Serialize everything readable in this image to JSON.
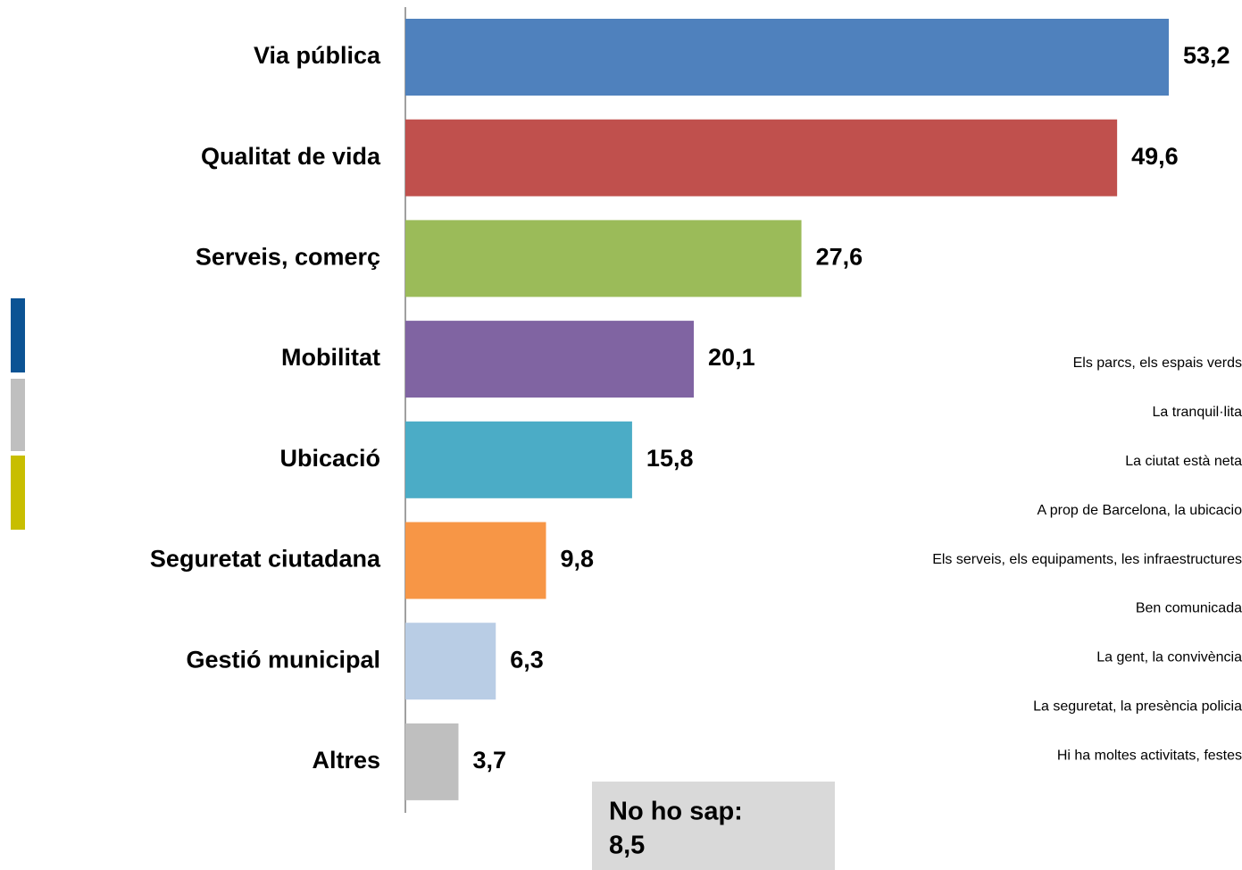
{
  "chart_data": {
    "type": "barh",
    "categories": [
      "Via pública",
      "Qualitat de vida",
      "Serveis, comerç",
      "Mobilitat",
      "Ubicació",
      "Seguretat ciutadana",
      "Gestió municipal",
      "Altres"
    ],
    "values": [
      53.2,
      49.6,
      27.6,
      20.1,
      15.8,
      9.8,
      6.3,
      3.7
    ],
    "value_labels": [
      "53,2",
      "49,6",
      "27,6",
      "20,1",
      "15,8",
      "9,8",
      "6,3",
      "3,7"
    ],
    "colors": [
      "#4f81bd",
      "#c0504d",
      "#9bbb59",
      "#8064a2",
      "#4bacc6",
      "#f79646",
      "#b9cde5",
      "#bfbfbf"
    ],
    "annotations": [
      "Els parcs, els espais verds",
      "La tranquil·lita",
      "La ciutat està neta",
      "A prop de Barcelona, la ubicacio",
      "Els serveis, els equipaments, les infraestructures",
      "Ben comunicada",
      "La gent, la convivència",
      "La seguretat, la presència policia",
      "Hi ha moltes activitats, festes"
    ],
    "unknown": {
      "label": "No ho sap:",
      "value_label": "8,5"
    }
  }
}
